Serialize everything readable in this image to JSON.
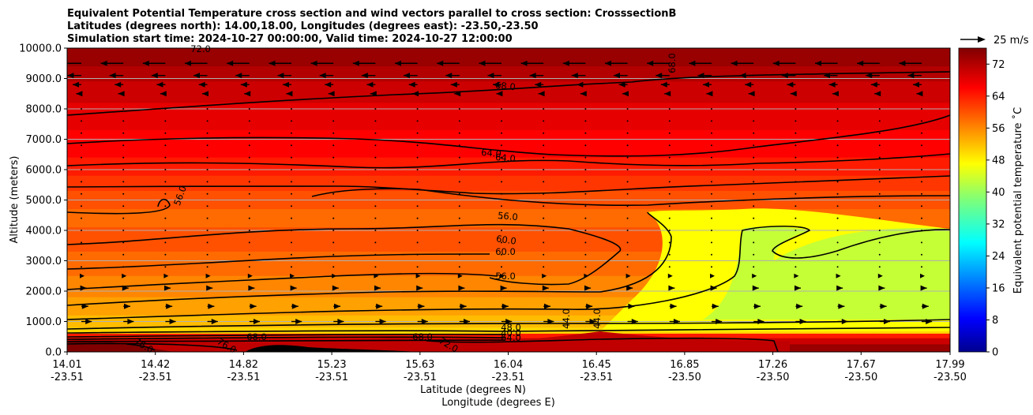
{
  "chart_data": {
    "type": "contourf",
    "title": [
      "Equivalent Potential Temperature cross section and wind vectors parallel to cross section: CrosssectionB",
      "Latitudes (degrees north): 14.00,18.00, Longitudes (degrees east): -23.50,-23.50",
      "Simulation start time: 2024-10-27 00:00:00, Valid time: 2024-10-27 12:00:00"
    ],
    "ylabel": "Altitude (meters)",
    "xlabel": "Latitude (degrees N)",
    "xlabel2": "Longitude (degrees E)",
    "ylim": [
      0,
      10000
    ],
    "grid": "horizontal",
    "y_ticks": [
      "0.0",
      "1000.0",
      "2000.0",
      "3000.0",
      "4000.0",
      "5000.0",
      "6000.0",
      "7000.0",
      "8000.0",
      "9000.0",
      "10000.0"
    ],
    "x_ticks": [
      {
        "lat": "14.01",
        "lon": "-23.51"
      },
      {
        "lat": "14.42",
        "lon": "-23.51"
      },
      {
        "lat": "14.82",
        "lon": "-23.51"
      },
      {
        "lat": "15.23",
        "lon": "-23.51"
      },
      {
        "lat": "15.63",
        "lon": "-23.51"
      },
      {
        "lat": "16.04",
        "lon": "-23.51"
      },
      {
        "lat": "16.45",
        "lon": "-23.51"
      },
      {
        "lat": "16.85",
        "lon": "-23.50"
      },
      {
        "lat": "17.26",
        "lon": "-23.50"
      },
      {
        "lat": "17.67",
        "lon": "-23.50"
      },
      {
        "lat": "17.99",
        "lon": "-23.50"
      }
    ],
    "colorbar": {
      "label": "Equivalent potential temperature ˚C",
      "ticks": [
        "0",
        "8",
        "16",
        "24",
        "32",
        "40",
        "48",
        "56",
        "64",
        "72"
      ],
      "range": [
        0,
        76
      ]
    },
    "quiver_key": "25 m/s",
    "contour_labels": [
      "72.0",
      "68.0",
      "68.0",
      "64.0",
      "64.0",
      "56.0",
      "56.0",
      "60.0",
      "60.0",
      "56.0",
      "48.0",
      "40.0",
      "44.0",
      "44.0",
      "64.0",
      "68.0",
      "68.0",
      "72.0",
      "76.0",
      "76.0"
    ],
    "bands": [
      {
        "top": 10000,
        "value": 74
      },
      {
        "top": 9400,
        "value": 72
      },
      {
        "top": 8900,
        "value": 70
      },
      {
        "top": 8200,
        "value": 68
      },
      {
        "top": 7300,
        "value": 66
      },
      {
        "top": 6400,
        "value": 64
      },
      {
        "top": 5800,
        "value": 62
      },
      {
        "top": 5300,
        "value": 60
      },
      {
        "top": 4700,
        "value": 58
      },
      {
        "top": 4100,
        "value": 60
      },
      {
        "top": 3300,
        "value": 58
      },
      {
        "top": 2500,
        "value": 56
      },
      {
        "top": 1800,
        "value": 54
      },
      {
        "top": 1200,
        "value": 52
      },
      {
        "top": 800,
        "value": 50
      },
      {
        "top": 600,
        "value": 64
      },
      {
        "top": 450,
        "value": 70
      },
      {
        "top": 250,
        "value": 74
      }
    ],
    "wind_rows": [
      {
        "z": 9500,
        "u": -13
      },
      {
        "z": 9100,
        "u": -8
      },
      {
        "z": 8800,
        "u": -5
      },
      {
        "z": 8500,
        "u": -3
      },
      {
        "z": 2500,
        "u": 2
      },
      {
        "z": 2100,
        "u": 3
      },
      {
        "z": 1500,
        "u": 4
      },
      {
        "z": 1000,
        "u": 6
      }
    ]
  }
}
